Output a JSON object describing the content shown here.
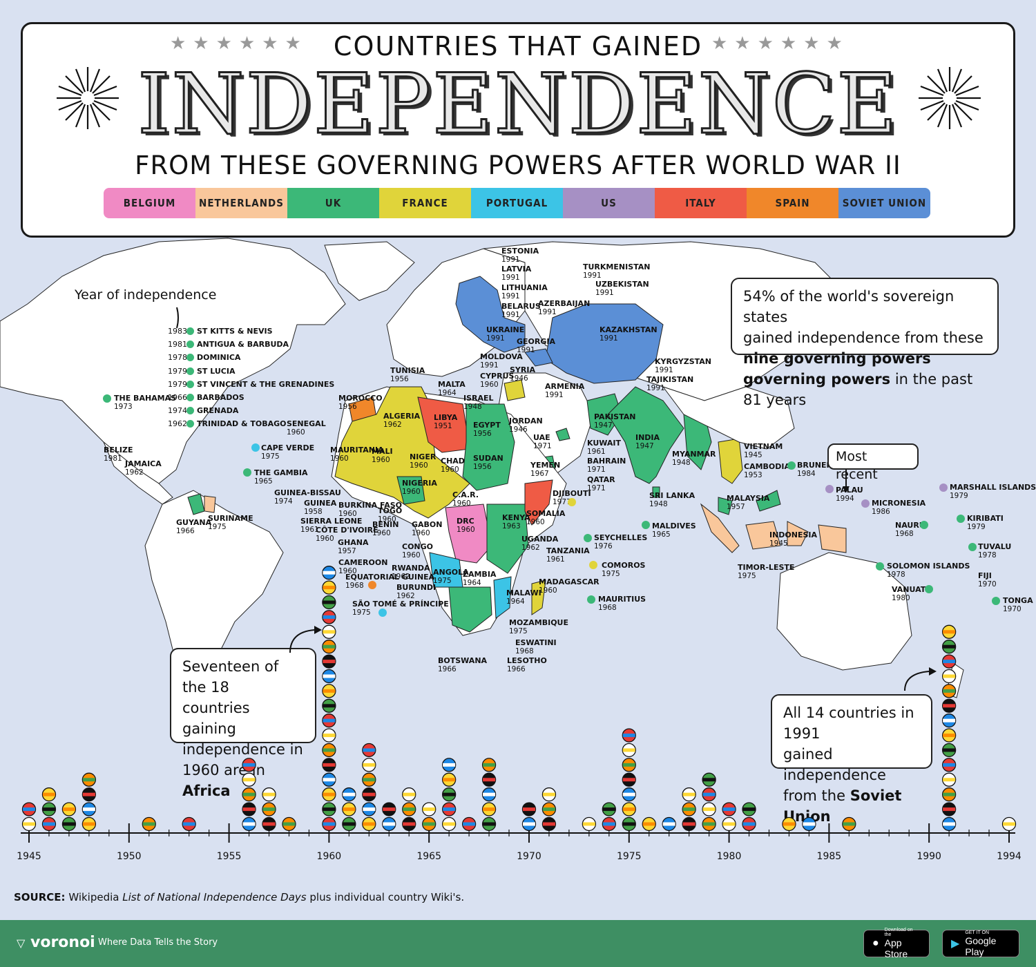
{
  "title": {
    "top": "COUNTRIES THAT GAINED",
    "main": "INDEPENDENCE",
    "sub": "FROM THESE GOVERNING POWERS AFTER WORLD WAR II"
  },
  "legend": [
    {
      "label": "BELGIUM",
      "color": "#f08ac4"
    },
    {
      "label": "NETHERLANDS",
      "color": "#f9c79b"
    },
    {
      "label": "UK",
      "color": "#3cb878"
    },
    {
      "label": "FRANCE",
      "color": "#e0d43a"
    },
    {
      "label": "PORTUGAL",
      "color": "#3cc4e6"
    },
    {
      "label": "US",
      "color": "#a690c4"
    },
    {
      "label": "ITALY",
      "color": "#ef5b45"
    },
    {
      "label": "SPAIN",
      "color": "#f0872a"
    },
    {
      "label": "SOVIET UNION",
      "color": "#5b8fd6"
    }
  ],
  "caribbean_header": "Year of independence",
  "caribbean_list": [
    {
      "year": "1983",
      "name": "ST KITTS & NEVIS"
    },
    {
      "year": "1981",
      "name": "ANTIGUA & BARBUDA"
    },
    {
      "year": "1978",
      "name": "DOMINICA"
    },
    {
      "year": "1979",
      "name": "ST LUCIA"
    },
    {
      "year": "1979",
      "name": "ST VINCENT & THE GRENADINES"
    },
    {
      "year": "1966",
      "name": "BARBADOS"
    },
    {
      "year": "1974",
      "name": "GRENADA"
    },
    {
      "year": "1962",
      "name": "TRINIDAD & TOBAGO"
    }
  ],
  "country_labels": [
    {
      "name": "ESTONIA",
      "year": "1991"
    },
    {
      "name": "LATVIA",
      "year": "1991"
    },
    {
      "name": "LITHUANIA",
      "year": "1991"
    },
    {
      "name": "BELARUS",
      "year": "1991"
    },
    {
      "name": "UKRAINE",
      "year": "1991"
    },
    {
      "name": "MOLDOVA",
      "year": "1991"
    },
    {
      "name": "GEORGIA",
      "year": "1991"
    },
    {
      "name": "AZERBAIJAN",
      "year": "1991"
    },
    {
      "name": "ARMENIA",
      "year": "1991"
    },
    {
      "name": "TURKMENISTAN",
      "year": "1991"
    },
    {
      "name": "UZBEKISTAN",
      "year": "1991"
    },
    {
      "name": "KAZAKHSTAN",
      "year": "1991"
    },
    {
      "name": "KYRGYZSTAN",
      "year": "1991"
    },
    {
      "name": "TAJIKISTAN",
      "year": "1991"
    },
    {
      "name": "TUNISIA",
      "year": "1956"
    },
    {
      "name": "MALTA",
      "year": "1964"
    },
    {
      "name": "CYPRUS",
      "year": "1960"
    },
    {
      "name": "SYRIA",
      "year": "1946"
    },
    {
      "name": "ISRAEL",
      "year": "1948"
    },
    {
      "name": "MOROCCO",
      "year": "1956"
    },
    {
      "name": "ALGERIA",
      "year": "1962"
    },
    {
      "name": "LIBYA",
      "year": "1951"
    },
    {
      "name": "EGYPT",
      "year": "1956"
    },
    {
      "name": "JORDAN",
      "year": "1946"
    },
    {
      "name": "UAE",
      "year": "1971"
    },
    {
      "name": "KUWAIT",
      "year": "1961"
    },
    {
      "name": "BAHRAIN",
      "year": "1971"
    },
    {
      "name": "QATAR",
      "year": "1971"
    },
    {
      "name": "PAKISTAN",
      "year": "1947"
    },
    {
      "name": "INDIA",
      "year": "1947"
    },
    {
      "name": "MYANMAR",
      "year": "1948"
    },
    {
      "name": "SRI LANKA",
      "year": "1948"
    },
    {
      "name": "MALDIVES",
      "year": "1965"
    },
    {
      "name": "VIETNAM",
      "year": "1945"
    },
    {
      "name": "CAMBODIA",
      "year": "1953"
    },
    {
      "name": "BRUNEI",
      "year": "1984"
    },
    {
      "name": "MALAYSIA",
      "year": "1957"
    },
    {
      "name": "INDONESIA",
      "year": "1945"
    },
    {
      "name": "TIMOR-LESTE",
      "year": "1975"
    },
    {
      "name": "PALAU",
      "year": "1994"
    },
    {
      "name": "MICRONESIA",
      "year": "1986"
    },
    {
      "name": "MARSHALL ISLANDS",
      "year": "1979"
    },
    {
      "name": "KIRIBATI",
      "year": "1979"
    },
    {
      "name": "NAURU",
      "year": "1968"
    },
    {
      "name": "TUVALU",
      "year": "1978"
    },
    {
      "name": "SOLOMON ISLANDS",
      "year": "1978"
    },
    {
      "name": "FIJI",
      "year": "1970"
    },
    {
      "name": "VANUATU",
      "year": "1980"
    },
    {
      "name": "TONGA",
      "year": "1970"
    },
    {
      "name": "SENEGAL",
      "year": "1960"
    },
    {
      "name": "MAURITANIA",
      "year": "1960"
    },
    {
      "name": "MALI",
      "year": "1960"
    },
    {
      "name": "NIGER",
      "year": "1960"
    },
    {
      "name": "CHAD",
      "year": "1960"
    },
    {
      "name": "SUDAN",
      "year": "1956"
    },
    {
      "name": "NIGERIA",
      "year": "1960"
    },
    {
      "name": "C.A.R.",
      "year": "1960"
    },
    {
      "name": "YEMEN",
      "year": "1967"
    },
    {
      "name": "DJIBOUTI",
      "year": "1977"
    },
    {
      "name": "SOMALIA",
      "year": "1960"
    },
    {
      "name": "KENYA",
      "year": "1963"
    },
    {
      "name": "UGANDA",
      "year": "1962"
    },
    {
      "name": "TANZANIA",
      "year": "1961"
    },
    {
      "name": "DRC",
      "year": "1960"
    },
    {
      "name": "GABON",
      "year": "1960"
    },
    {
      "name": "CONGO",
      "year": "1960"
    },
    {
      "name": "RWANDA",
      "year": "1962"
    },
    {
      "name": "BURUNDI",
      "year": "1962"
    },
    {
      "name": "ANGOLA",
      "year": "1975"
    },
    {
      "name": "ZAMBIA",
      "year": "1964"
    },
    {
      "name": "MALAWI",
      "year": "1964"
    },
    {
      "name": "MOZAMBIQUE",
      "year": "1975"
    },
    {
      "name": "ESWATINI",
      "year": "1968"
    },
    {
      "name": "LESOTHO",
      "year": "1966"
    },
    {
      "name": "BOTSWANA",
      "year": "1966"
    },
    {
      "name": "MADAGASCAR",
      "year": "1960"
    },
    {
      "name": "SEYCHELLES",
      "year": "1976"
    },
    {
      "name": "COMOROS",
      "year": "1975"
    },
    {
      "name": "MAURITIUS",
      "year": "1968"
    },
    {
      "name": "THE GAMBIA",
      "year": "1965"
    },
    {
      "name": "CAPE VERDE",
      "year": "1975"
    },
    {
      "name": "GUINEA-BISSAU",
      "year": "1974"
    },
    {
      "name": "GUINEA",
      "year": "1958"
    },
    {
      "name": "SIERRA LEONE",
      "year": "1961"
    },
    {
      "name": "CÔTE D'IVOIRE",
      "year": "1960"
    },
    {
      "name": "GHANA",
      "year": "1957"
    },
    {
      "name": "BURKINA FASO",
      "year": "1960"
    },
    {
      "name": "TOGO",
      "year": "1960"
    },
    {
      "name": "BENIN",
      "year": "1960"
    },
    {
      "name": "CAMEROON",
      "year": "1960"
    },
    {
      "name": "EQUATORIAL GUINEA",
      "year": "1968"
    },
    {
      "name": "SÃO TOMÉ & PRÍNCIPE",
      "year": "1975"
    },
    {
      "name": "THE BAHAMAS",
      "year": "1973"
    },
    {
      "name": "BELIZE",
      "year": "1981"
    },
    {
      "name": "JAMAICA",
      "year": "1962"
    },
    {
      "name": "GUYANA",
      "year": "1966"
    },
    {
      "name": "SURINAME",
      "year": "1975"
    }
  ],
  "notes": {
    "sovereign": [
      "54% of the world's sovereign states",
      "gained independence from these",
      "nine governing powers",
      "in the past 81 years"
    ],
    "africa": [
      "Seventeen of the 18",
      "countries gaining",
      "independence in",
      "1960 are in",
      "Africa"
    ],
    "soviet": [
      "All 14 countries in 1991",
      "gained independence",
      "from the",
      "Soviet Union"
    ],
    "most_recent": "Most recent"
  },
  "chart_data": {
    "type": "timeline",
    "x_axis_ticks": [
      1945,
      1950,
      1955,
      1960,
      1965,
      1970,
      1975,
      1980,
      1985,
      1990,
      1994
    ],
    "xlim": [
      1945,
      1994
    ],
    "counts_per_year": [
      {
        "year": 1945,
        "count": 2
      },
      {
        "year": 1946,
        "count": 3
      },
      {
        "year": 1947,
        "count": 2
      },
      {
        "year": 1948,
        "count": 4
      },
      {
        "year": 1951,
        "count": 1
      },
      {
        "year": 1953,
        "count": 1
      },
      {
        "year": 1956,
        "count": 5
      },
      {
        "year": 1957,
        "count": 3
      },
      {
        "year": 1958,
        "count": 1
      },
      {
        "year": 1960,
        "count": 18
      },
      {
        "year": 1961,
        "count": 3
      },
      {
        "year": 1962,
        "count": 6
      },
      {
        "year": 1963,
        "count": 2
      },
      {
        "year": 1964,
        "count": 3
      },
      {
        "year": 1965,
        "count": 2
      },
      {
        "year": 1966,
        "count": 5
      },
      {
        "year": 1967,
        "count": 1
      },
      {
        "year": 1968,
        "count": 5
      },
      {
        "year": 1970,
        "count": 2
      },
      {
        "year": 1971,
        "count": 3
      },
      {
        "year": 1973,
        "count": 1
      },
      {
        "year": 1974,
        "count": 2
      },
      {
        "year": 1975,
        "count": 7
      },
      {
        "year": 1976,
        "count": 1
      },
      {
        "year": 1977,
        "count": 1
      },
      {
        "year": 1978,
        "count": 3
      },
      {
        "year": 1979,
        "count": 4
      },
      {
        "year": 1980,
        "count": 2
      },
      {
        "year": 1981,
        "count": 2
      },
      {
        "year": 1983,
        "count": 1
      },
      {
        "year": 1984,
        "count": 1
      },
      {
        "year": 1986,
        "count": 1
      },
      {
        "year": 1991,
        "count": 14
      },
      {
        "year": 1994,
        "count": 1
      }
    ]
  },
  "source": {
    "label": "SOURCE:",
    "text_1": " Wikipedia ",
    "text_italic": "List of National Independence Days",
    "text_2": " plus individual country Wiki's."
  },
  "footer": {
    "brand": "voronoi",
    "tagline": "Where Data Tells the Story",
    "app_store_small": "Download on the",
    "app_store": "App Store",
    "google_small": "GET IT ON",
    "google": "Google Play"
  }
}
